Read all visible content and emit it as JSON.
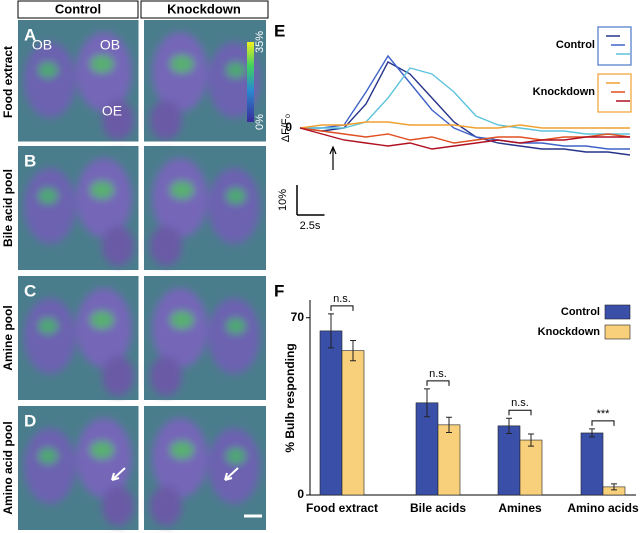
{
  "header": {
    "columns": [
      "Control",
      "Knockdown"
    ]
  },
  "panels": [
    {
      "letter": "A",
      "row_label": "Food extract"
    },
    {
      "letter": "B",
      "row_label": "Bile acid pool"
    },
    {
      "letter": "C",
      "row_label": "Amine pool"
    },
    {
      "letter": "D",
      "row_label": "Amino acid pool"
    }
  ],
  "annotations": [
    "OB",
    "OB",
    "OE"
  ],
  "colorbar": {
    "max_label": "35%",
    "min_label": "0%"
  },
  "chart_data": [
    {
      "type": "line",
      "panel": "E",
      "ylabel": "ΔF/F₀",
      "zero_label": "0",
      "x": [
        0,
        2,
        4,
        6,
        8,
        10,
        12,
        14,
        16,
        18,
        20,
        22,
        24,
        26,
        28,
        30
      ],
      "stimulus_x": 3,
      "ylim": [
        -12,
        30
      ],
      "scale_bars": {
        "y": {
          "value": 10,
          "label": "10%"
        },
        "x": {
          "value": 2.5,
          "label": "2.5s"
        }
      },
      "groups": [
        {
          "name": "Control",
          "box_color": "#4a78c8",
          "series": [
            {
              "color": "#26348a",
              "values": [
                0,
                -1,
                0,
                8,
                22,
                18,
                10,
                2,
                -3,
                -5,
                -6,
                -7,
                -7,
                -8,
                -8,
                -9
              ]
            },
            {
              "color": "#3f62c8",
              "values": [
                0,
                0,
                1,
                12,
                24,
                15,
                6,
                0,
                -3,
                -4,
                -5,
                -5,
                -6,
                -6,
                -7,
                -7
              ]
            },
            {
              "color": "#5cc3dc",
              "values": [
                0,
                0,
                0,
                2,
                10,
                20,
                18,
                12,
                4,
                1,
                0,
                -1,
                -1,
                -2,
                -2,
                -2
              ]
            }
          ]
        },
        {
          "name": "Knockdown",
          "box_color": "#f0a030",
          "series": [
            {
              "color": "#f0a030",
              "values": [
                0,
                1,
                1,
                2,
                2,
                1,
                1,
                1,
                0,
                0,
                1,
                0,
                0,
                0,
                0,
                0
              ]
            },
            {
              "color": "#e05020",
              "values": [
                0,
                -1,
                -2,
                -3,
                -2,
                -4,
                -3,
                -5,
                -4,
                -3,
                -3,
                -4,
                -3,
                -3,
                -2,
                -3
              ]
            },
            {
              "color": "#b01020",
              "values": [
                0,
                -2,
                -4,
                -5,
                -6,
                -5,
                -7,
                -6,
                -5,
                -4,
                -5,
                -4,
                -4,
                -3,
                -3,
                -3
              ]
            }
          ]
        }
      ]
    },
    {
      "type": "bar",
      "panel": "F",
      "ylabel": "% Bulb responding",
      "categories": [
        "Food extract",
        "Bile acids",
        "Amines",
        "Amino acids"
      ],
      "ylim": [
        0,
        77
      ],
      "yticks": [
        0,
        70
      ],
      "series": [
        {
          "name": "Control",
          "color": "#3a4fa8",
          "values": [
            64.8,
            36.4,
            27.3,
            24.5
          ],
          "errors": [
            6.7,
            5.5,
            3,
            1.6
          ]
        },
        {
          "name": "Knockdown",
          "color": "#f8cf7a",
          "values": [
            57,
            27.7,
            21.7,
            3.2
          ],
          "errors": [
            4,
            3,
            2.4,
            1.2
          ]
        }
      ],
      "significance": [
        "n.s.",
        "n.s.",
        "n.s.",
        "***"
      ]
    }
  ]
}
